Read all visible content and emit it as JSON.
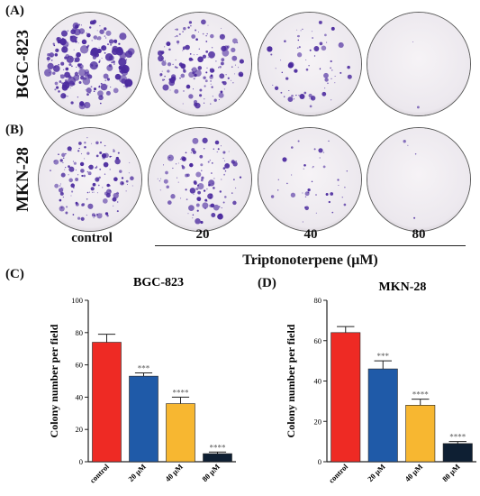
{
  "panels": {
    "A": "(A)",
    "B": "(B)",
    "C": "(C)",
    "D": "(D)"
  },
  "rows": [
    "BGC-823",
    "MKN-28"
  ],
  "columns": [
    "control",
    "20",
    "40",
    "80"
  ],
  "treatment_label": "Triptonoterpene (μM)",
  "colors": {
    "stain": "#4b2a9e",
    "plate": "#ece8ee",
    "bar_control": "#ee2a24",
    "bar_20": "#1f5aa8",
    "bar_40": "#f7b731",
    "bar_80": "#0e1f33"
  },
  "chart_data": [
    {
      "type": "bar",
      "title": "BGC-823",
      "ylabel": "Colony number per field",
      "categories": [
        "control",
        "20 μM",
        "40 μM",
        "80 μM"
      ],
      "values": [
        74,
        53,
        36,
        5
      ],
      "errors": [
        5,
        2,
        4,
        1
      ],
      "significance": [
        "",
        "***",
        "****",
        "****"
      ],
      "ylim": [
        0,
        100
      ],
      "yticks": [
        0,
        20,
        40,
        60,
        80,
        100
      ]
    },
    {
      "type": "bar",
      "title": "MKN-28",
      "ylabel": "Colony number per field",
      "categories": [
        "control",
        "20 μM",
        "40 μM",
        "80 μM"
      ],
      "values": [
        64,
        46,
        28,
        9
      ],
      "errors": [
        3,
        4,
        3,
        1
      ],
      "significance": [
        "",
        "***",
        "****",
        "****"
      ],
      "ylim": [
        0,
        80
      ],
      "yticks": [
        0,
        20,
        40,
        60,
        80
      ]
    }
  ]
}
